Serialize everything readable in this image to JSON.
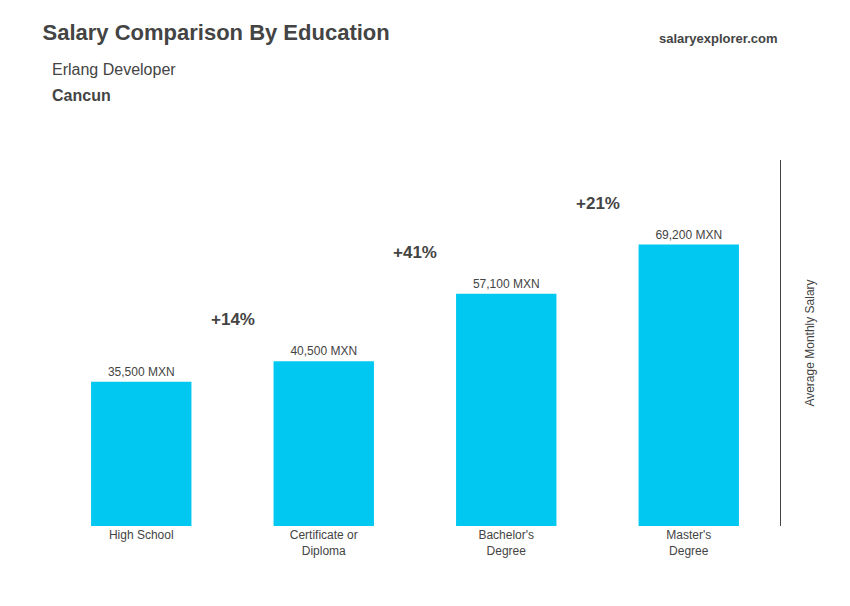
{
  "chart_data": {
    "type": "bar",
    "title": "Salary Comparison By Education",
    "subtitle": [
      "Erlang Developer",
      "Cancun"
    ],
    "website": [
      "salary",
      "explorer",
      ".com"
    ],
    "categories": [
      "High School",
      "Certificate or\nDiploma",
      "Bachelor's\nDegree",
      "Master's\nDegree"
    ],
    "values": [
      35500,
      40500,
      57100,
      69200
    ],
    "value_labels": [
      "35,500 MXN",
      "40,500 MXN",
      "57,100 MXN",
      "69,200 MXN"
    ],
    "data_labels": true,
    "annotations": [
      "+14%",
      "+41%",
      "+21%"
    ],
    "ylabel": "Average Monthly Salary",
    "color": "#00c8f0",
    "ylim": [
      0,
      90000
    ],
    "tick_labels": "x",
    "grid": false
  }
}
